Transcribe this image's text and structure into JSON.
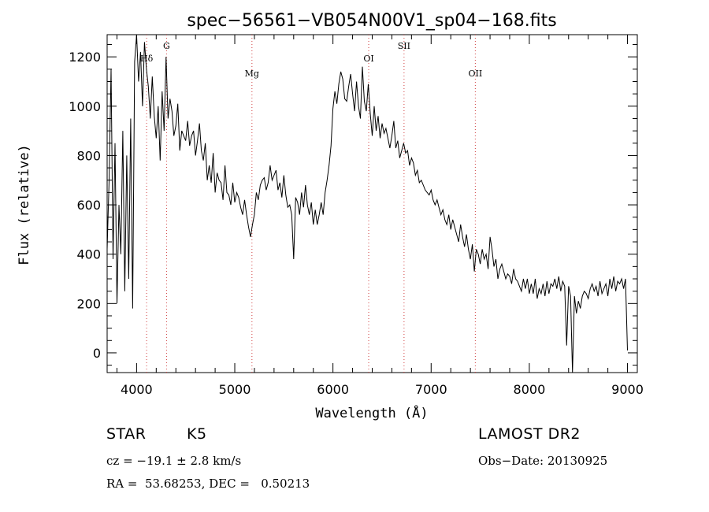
{
  "chart_data": {
    "type": "line",
    "title": "spec−56561−VB054N00V1_sp04−168.fits",
    "xlabel": "Wavelength (Å)",
    "ylabel": "Flux (relative)",
    "xlim": [
      3700,
      9100
    ],
    "ylim": [
      -80,
      1290
    ],
    "xticks": [
      4000,
      5000,
      6000,
      7000,
      8000,
      9000
    ],
    "yticks": [
      0,
      200,
      400,
      600,
      800,
      1000,
      1200
    ],
    "series": [
      {
        "x": [
          3700,
          3720,
          3740,
          3760,
          3780,
          3800,
          3820,
          3840,
          3860,
          3880,
          3900,
          3920,
          3940,
          3960,
          3980,
          4000,
          4020,
          4040,
          4060,
          4080,
          4100,
          4120,
          4140,
          4160,
          4180,
          4200,
          4220,
          4240,
          4260,
          4280,
          4300,
          4320,
          4340,
          4360,
          4380,
          4400,
          4420,
          4440,
          4460,
          4480,
          4500,
          4520,
          4540,
          4560,
          4580,
          4600,
          4620,
          4640,
          4660,
          4680,
          4700,
          4720,
          4740,
          4760,
          4780,
          4800,
          4820,
          4840,
          4860,
          4880,
          4900,
          4920,
          4940,
          4960,
          4980,
          5000,
          5020,
          5040,
          5060,
          5080,
          5100,
          5120,
          5140,
          5160,
          5180,
          5200,
          5220,
          5240,
          5260,
          5280,
          5300,
          5320,
          5340,
          5360,
          5380,
          5400,
          5420,
          5440,
          5460,
          5480,
          5500,
          5520,
          5540,
          5560,
          5580,
          5600,
          5620,
          5640,
          5660,
          5680,
          5700,
          5720,
          5740,
          5760,
          5780,
          5800,
          5820,
          5840,
          5860,
          5880,
          5900,
          5920,
          5940,
          5960,
          5980,
          6000,
          6020,
          6040,
          6060,
          6080,
          6100,
          6120,
          6140,
          6160,
          6180,
          6200,
          6220,
          6240,
          6260,
          6280,
          6300,
          6320,
          6340,
          6360,
          6380,
          6400,
          6420,
          6440,
          6460,
          6480,
          6500,
          6520,
          6540,
          6560,
          6580,
          6600,
          6620,
          6640,
          6660,
          6680,
          6700,
          6720,
          6740,
          6760,
          6780,
          6800,
          6820,
          6840,
          6860,
          6880,
          6900,
          6920,
          6940,
          6960,
          6980,
          7000,
          7020,
          7040,
          7060,
          7080,
          7100,
          7120,
          7140,
          7160,
          7180,
          7200,
          7220,
          7240,
          7260,
          7280,
          7300,
          7320,
          7340,
          7360,
          7380,
          7400,
          7420,
          7440,
          7460,
          7480,
          7500,
          7520,
          7540,
          7560,
          7580,
          7600,
          7620,
          7640,
          7660,
          7680,
          7700,
          7720,
          7740,
          7760,
          7780,
          7800,
          7820,
          7840,
          7860,
          7880,
          7900,
          7920,
          7940,
          7960,
          7980,
          8000,
          8020,
          8040,
          8060,
          8080,
          8100,
          8120,
          8140,
          8160,
          8180,
          8200,
          8220,
          8240,
          8260,
          8280,
          8300,
          8320,
          8340,
          8360,
          8380,
          8400,
          8420,
          8440,
          8460,
          8480,
          8500,
          8520,
          8540,
          8560,
          8580,
          8600,
          8620,
          8640,
          8660,
          8680,
          8700,
          8720,
          8740,
          8760,
          8780,
          8800,
          8820,
          8840,
          8860,
          8880,
          8900,
          8920,
          8940,
          8960,
          8980,
          9000
        ],
        "values": [
          420,
          700,
          1150,
          380,
          850,
          200,
          600,
          400,
          900,
          250,
          800,
          300,
          950,
          180,
          1180,
          1290,
          1100,
          1220,
          1000,
          1260,
          1150,
          1080,
          950,
          1120,
          960,
          870,
          1000,
          780,
          1060,
          900,
          1200,
          950,
          1030,
          980,
          880,
          920,
          1010,
          820,
          900,
          880,
          860,
          940,
          840,
          880,
          900,
          800,
          860,
          930,
          820,
          780,
          850,
          700,
          760,
          690,
          810,
          650,
          730,
          700,
          690,
          620,
          760,
          650,
          640,
          600,
          690,
          610,
          650,
          630,
          590,
          560,
          620,
          560,
          510,
          470,
          520,
          560,
          650,
          620,
          680,
          700,
          710,
          660,
          690,
          760,
          700,
          720,
          740,
          660,
          690,
          630,
          720,
          640,
          590,
          600,
          560,
          380,
          630,
          610,
          560,
          650,
          590,
          680,
          600,
          560,
          610,
          520,
          580,
          520,
          560,
          610,
          560,
          650,
          700,
          760,
          840,
          990,
          1060,
          1010,
          1090,
          1140,
          1110,
          1030,
          1020,
          1080,
          1130,
          1050,
          980,
          1100,
          1000,
          950,
          1160,
          1020,
          980,
          1090,
          970,
          880,
          1000,
          900,
          960,
          870,
          930,
          890,
          910,
          870,
          830,
          880,
          940,
          830,
          860,
          790,
          820,
          850,
          810,
          820,
          760,
          790,
          770,
          720,
          740,
          690,
          700,
          680,
          660,
          650,
          640,
          660,
          620,
          600,
          620,
          590,
          560,
          580,
          540,
          520,
          560,
          500,
          540,
          510,
          480,
          450,
          520,
          470,
          430,
          480,
          420,
          380,
          440,
          330,
          420,
          400,
          360,
          420,
          380,
          400,
          340,
          470,
          420,
          350,
          380,
          300,
          340,
          360,
          330,
          300,
          320,
          310,
          280,
          340,
          300,
          290,
          270,
          250,
          300,
          260,
          300,
          240,
          280,
          240,
          300,
          220,
          260,
          240,
          280,
          230,
          290,
          240,
          280,
          270,
          300,
          260,
          310,
          250,
          290,
          270,
          30,
          270,
          230,
          -80,
          230,
          160,
          210,
          180,
          230,
          250,
          240,
          220,
          260,
          280,
          250,
          270,
          230,
          290,
          240,
          260,
          280,
          230,
          300,
          260,
          310,
          250,
          290,
          280,
          300,
          260,
          300,
          10
        ]
      }
    ],
    "lines": [
      {
        "label": "Hδ",
        "x": 4102
      },
      {
        "label": "G",
        "x": 4305
      },
      {
        "label": "Mg",
        "x": 5175
      },
      {
        "label": "OI",
        "x": 6364
      },
      {
        "label": "SII",
        "x": 6724
      },
      {
        "label": "OII",
        "x": 7450
      }
    ]
  },
  "info": {
    "object_class": "STAR",
    "subclass": "K5",
    "survey": "LAMOST DR2",
    "cz_line": "cz = −19.1 ± 2.8 km/s",
    "obs_date": "Obs−Date: 20130925",
    "radec": "RA =  53.68253, DEC =   0.50213"
  }
}
